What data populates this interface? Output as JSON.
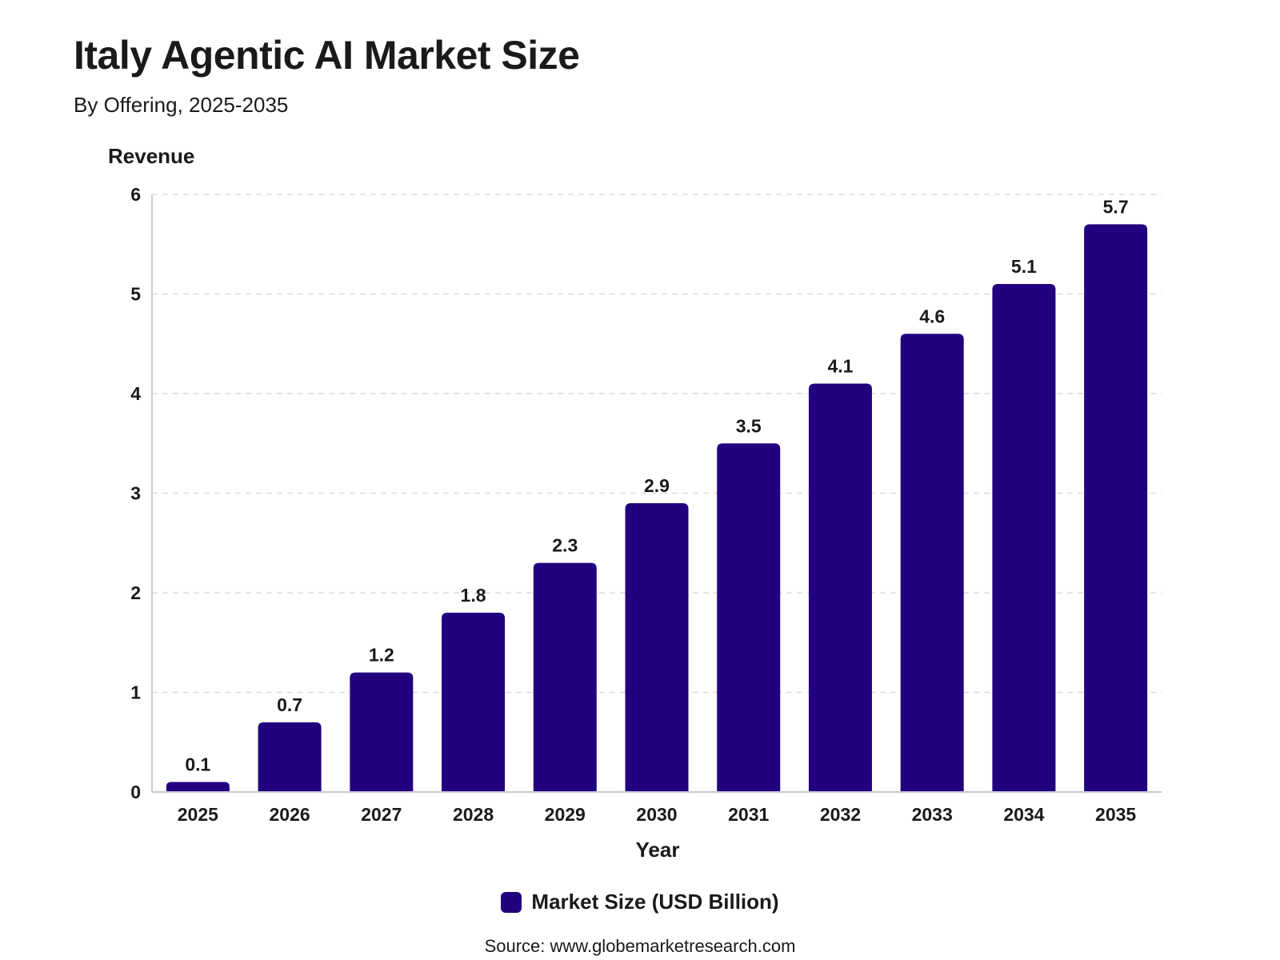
{
  "header": {
    "title": "Italy Agentic AI Market Size",
    "subtitle": "By Offering, 2025-2035"
  },
  "legend": {
    "label": "Market Size (USD Billion)"
  },
  "source": "Source: www.globemarketresearch.com",
  "colors": {
    "bar": "#22007f",
    "grid": "#dcdcdc",
    "axis": "#c8c8d8"
  },
  "chart_data": {
    "type": "bar",
    "categories": [
      "2025",
      "2026",
      "2027",
      "2028",
      "2029",
      "2030",
      "2031",
      "2032",
      "2033",
      "2034",
      "2035"
    ],
    "series": [
      {
        "name": "Market Size (USD Billion)",
        "values": [
          0.1,
          0.7,
          1.2,
          1.8,
          2.3,
          2.9,
          3.5,
          4.1,
          4.6,
          5.1,
          5.7
        ]
      }
    ],
    "data_labels": [
      "0.1",
      "0.7",
      "1.2",
      "1.8",
      "2.3",
      "2.9",
      "3.5",
      "4.1",
      "4.6",
      "5.1",
      "5.7"
    ],
    "title": "Italy Agentic AI Market Size",
    "subtitle": "By Offering, 2025-2035",
    "xlabel": "Year",
    "ylabel": "Revenue",
    "ylim": [
      0,
      6
    ],
    "yticks": [
      0,
      1,
      2,
      3,
      4,
      5,
      6
    ],
    "grid": true,
    "legend_position": "bottom"
  }
}
